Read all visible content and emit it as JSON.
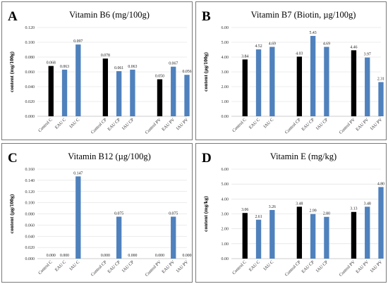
{
  "chart_data": [
    {
      "type": "bar",
      "panel_letter": "A",
      "title": "Vitamin B6 (mg/100g)",
      "ylabel": "content (mg/100g)",
      "xlabel": "",
      "ylim": [
        0,
        0.12
      ],
      "yticks": [
        "0.000",
        "0.020",
        "0.040",
        "0.060",
        "0.080",
        "0.100",
        "0.120"
      ],
      "ytick_values": [
        0,
        0.02,
        0.04,
        0.06,
        0.08,
        0.1,
        0.12
      ],
      "grid": true,
      "categories": [
        "Control C",
        "EAU C",
        "IAU C",
        "Control CP",
        "EAU CP",
        "IAU CP",
        "Control PV",
        "EAU PV",
        "IAU PV"
      ],
      "values": [
        0.068,
        0.063,
        0.097,
        0.078,
        0.061,
        0.063,
        0.05,
        0.067,
        0.056
      ],
      "value_labels": [
        "0.068",
        "0.063",
        "0.097",
        "0.078",
        "0.061",
        "0.063",
        "0.050",
        "0.067",
        "0.056"
      ],
      "colors": [
        "#000000",
        "#4f81bd",
        "#4f81bd",
        "#000000",
        "#4f81bd",
        "#4f81bd",
        "#000000",
        "#4f81bd",
        "#4f81bd"
      ]
    },
    {
      "type": "bar",
      "panel_letter": "B",
      "title": "Vitamin B7 (Biotin, µg/100g)",
      "ylabel": "content (µg/100g)",
      "xlabel": "",
      "ylim": [
        0,
        6
      ],
      "yticks": [
        "0.00",
        "1.00",
        "2.00",
        "3.00",
        "4.00",
        "5.00",
        "6.00"
      ],
      "ytick_values": [
        0,
        1,
        2,
        3,
        4,
        5,
        6
      ],
      "grid": true,
      "categories": [
        "Control C",
        "EAU C",
        "IAU C",
        "Control CP",
        "EAU CP",
        "IAU CP",
        "Control PV",
        "EAU PV",
        "IAU PV"
      ],
      "values": [
        3.84,
        4.52,
        4.69,
        4.03,
        5.43,
        4.69,
        4.46,
        3.97,
        2.31
      ],
      "value_labels": [
        "3.84",
        "4.52",
        "4.69",
        "4.03",
        "5.43",
        "4.69",
        "4.46",
        "3.97",
        "2.31"
      ],
      "colors": [
        "#000000",
        "#4f81bd",
        "#4f81bd",
        "#000000",
        "#4f81bd",
        "#4f81bd",
        "#000000",
        "#4f81bd",
        "#4f81bd"
      ]
    },
    {
      "type": "bar",
      "panel_letter": "C",
      "title": "Vitamin B12 (µg/100g)",
      "ylabel": "content (µg/100g)",
      "xlabel": "",
      "ylim": [
        0,
        0.16
      ],
      "yticks": [
        "0.000",
        "0.020",
        "0.040",
        "0.060",
        "0.080",
        "0.100",
        "0.120",
        "0.140",
        "0.160"
      ],
      "ytick_values": [
        0,
        0.02,
        0.04,
        0.06,
        0.08,
        0.1,
        0.12,
        0.14,
        0.16
      ],
      "grid": true,
      "categories": [
        "Control C",
        "EAU C",
        "IAU C",
        "Control CP",
        "EAU CP",
        "IAU CP",
        "Control PV",
        "EAU PV",
        "IAU PV"
      ],
      "values": [
        0.0,
        0.0,
        0.147,
        0.0,
        0.075,
        0.0,
        0.0,
        0.075,
        0.0
      ],
      "value_labels": [
        "0.000",
        "0.000",
        "0.147",
        "0.000",
        "0.075",
        "0.000",
        "0.000",
        "0.075",
        "0.000"
      ],
      "colors": [
        "#000000",
        "#4f81bd",
        "#4f81bd",
        "#000000",
        "#4f81bd",
        "#4f81bd",
        "#000000",
        "#4f81bd",
        "#4f81bd"
      ]
    },
    {
      "type": "bar",
      "panel_letter": "D",
      "title": "Vitamin E (mg/kg)",
      "ylabel": "content (mg/kg)",
      "xlabel": "",
      "ylim": [
        0,
        6
      ],
      "yticks": [
        "0.00",
        "1.00",
        "2.00",
        "3.00",
        "4.00",
        "5.00",
        "6.00"
      ],
      "ytick_values": [
        0,
        1,
        2,
        3,
        4,
        5,
        6
      ],
      "grid": true,
      "categories": [
        "Control C",
        "EAU C",
        "IAU C",
        "Control CP",
        "EAU CP",
        "IAU CP",
        "Control PV",
        "EAU PV",
        "IAU PV"
      ],
      "values": [
        3.06,
        2.61,
        3.26,
        3.48,
        2.99,
        2.8,
        3.13,
        3.48,
        4.8
      ],
      "value_labels": [
        "3.06",
        "2.61",
        "3.26",
        "3.48",
        "2.99",
        "2.80",
        "3.13",
        "3.48",
        "4.80"
      ],
      "colors": [
        "#000000",
        "#4f81bd",
        "#4f81bd",
        "#000000",
        "#4f81bd",
        "#4f81bd",
        "#000000",
        "#4f81bd",
        "#4f81bd"
      ]
    }
  ]
}
